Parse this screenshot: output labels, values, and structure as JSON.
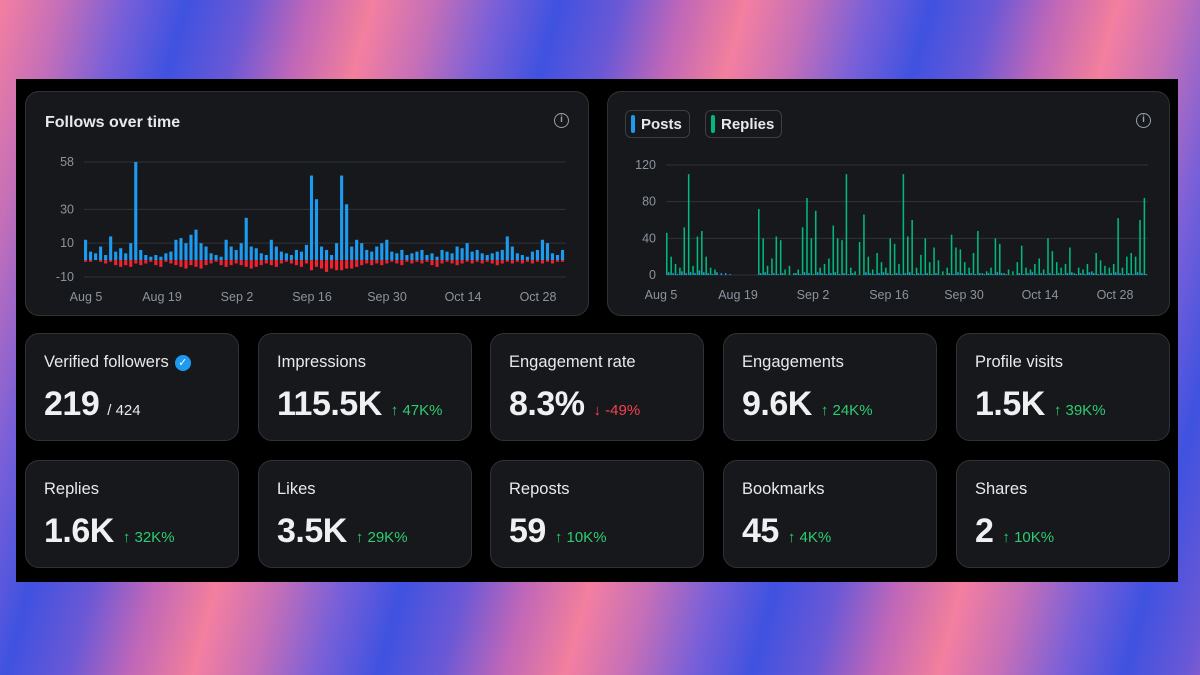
{
  "follows_chart": {
    "title": "Follows over time",
    "info_icon": "info-icon",
    "colors": {
      "gain": "#1d9bf0",
      "loss": "#f4212e",
      "grid": "#2f3336"
    },
    "chart_data": {
      "type": "bar",
      "title": "Follows over time",
      "y_ticks": [
        "58",
        "30",
        "10",
        "-10"
      ],
      "ylim": [
        -10,
        58
      ],
      "x_tick_labels": [
        "Aug 5",
        "Aug 19",
        "Sep 2",
        "Sep 16",
        "Sep 30",
        "Oct 14",
        "Oct 28"
      ],
      "series": [
        {
          "name": "Gained",
          "values": [
            12,
            5,
            4,
            8,
            3,
            14,
            5,
            7,
            4,
            10,
            58,
            6,
            3,
            2,
            3,
            2,
            4,
            5,
            12,
            13,
            10,
            15,
            18,
            10,
            8,
            4,
            3,
            2,
            12,
            8,
            6,
            10,
            25,
            8,
            7,
            4,
            3,
            12,
            8,
            5,
            4,
            3,
            6,
            5,
            9,
            50,
            36,
            8,
            6,
            3,
            10,
            50,
            33,
            8,
            12,
            10,
            6,
            5,
            8,
            10,
            12,
            5,
            4,
            6,
            3,
            4,
            5,
            6,
            3,
            4,
            2,
            6,
            5,
            4,
            8,
            7,
            10,
            5,
            6,
            4,
            3,
            4,
            5,
            6,
            14,
            8,
            4,
            3,
            2,
            5,
            6,
            12,
            10,
            4,
            3,
            6
          ]
        },
        {
          "name": "Lost",
          "values": [
            -1,
            -1,
            0,
            -1,
            -2,
            -1,
            -3,
            -4,
            -3,
            -4,
            -2,
            -3,
            -2,
            -1,
            -3,
            -4,
            -1,
            -2,
            -3,
            -4,
            -5,
            -3,
            -4,
            -5,
            -3,
            -2,
            -1,
            -3,
            -4,
            -3,
            -2,
            -3,
            -4,
            -5,
            -4,
            -3,
            -2,
            -3,
            -4,
            -2,
            -1,
            -2,
            -3,
            -4,
            -2,
            -6,
            -4,
            -5,
            -7,
            -5,
            -6,
            -6,
            -5,
            -5,
            -4,
            -3,
            -2,
            -3,
            -2,
            -3,
            -2,
            -1,
            -2,
            -3,
            -1,
            -2,
            -1,
            -2,
            -1,
            -3,
            -4,
            -2,
            -1,
            -2,
            -3,
            -2,
            -1,
            -2,
            -1,
            -2,
            -1,
            -2,
            -3,
            -2,
            -1,
            -2,
            -1,
            -2,
            -1,
            -2,
            -1,
            -2,
            -1,
            -2,
            -1,
            -1
          ]
        }
      ]
    }
  },
  "activity_chart": {
    "legend": [
      {
        "label": "Posts",
        "color": "#1d9bf0"
      },
      {
        "label": "Replies",
        "color": "#00ba7c"
      }
    ],
    "info_icon": "info-icon",
    "chart_data": {
      "type": "bar",
      "y_ticks": [
        "120",
        "80",
        "40",
        "0"
      ],
      "ylim": [
        0,
        120
      ],
      "x_tick_labels": [
        "Aug 5",
        "Aug 19",
        "Sep 2",
        "Sep 16",
        "Sep 30",
        "Oct 14",
        "Oct 28"
      ],
      "series": [
        {
          "name": "Posts",
          "values": [
            3,
            2,
            1,
            4,
            2,
            3,
            2,
            5,
            3,
            2,
            1,
            3,
            2,
            2,
            1,
            0,
            0,
            0,
            0,
            0,
            0,
            2,
            3,
            1,
            2,
            1,
            2,
            0,
            0,
            2,
            1,
            3,
            2,
            1,
            3,
            2,
            1,
            2,
            3,
            1,
            2,
            1,
            2,
            0,
            0,
            3,
            2,
            1,
            2,
            3,
            2,
            1,
            2,
            1,
            2,
            3,
            1,
            2,
            1,
            2,
            1,
            2,
            0,
            0,
            2,
            1,
            3,
            2,
            1,
            2,
            1,
            2,
            1,
            2,
            1,
            3,
            2,
            1,
            0,
            0,
            2,
            1,
            2,
            3,
            1,
            2,
            1,
            2,
            1,
            2,
            1,
            2,
            3,
            1,
            2,
            1,
            3,
            2,
            1,
            2,
            1,
            2,
            3,
            2,
            1,
            2,
            1,
            3,
            2,
            1
          ]
        },
        {
          "name": "Replies",
          "values": [
            46,
            20,
            12,
            8,
            52,
            110,
            10,
            42,
            48,
            20,
            8,
            6,
            0,
            0,
            0,
            0,
            0,
            0,
            0,
            0,
            0,
            72,
            40,
            10,
            18,
            42,
            38,
            6,
            10,
            2,
            6,
            52,
            84,
            40,
            70,
            8,
            12,
            18,
            54,
            40,
            38,
            110,
            8,
            4,
            36,
            66,
            20,
            6,
            24,
            14,
            8,
            40,
            34,
            12,
            110,
            42,
            60,
            8,
            22,
            40,
            14,
            30,
            16,
            4,
            8,
            44,
            30,
            28,
            14,
            8,
            24,
            48,
            2,
            4,
            8,
            40,
            34,
            2,
            6,
            4,
            14,
            32,
            8,
            6,
            12,
            18,
            6,
            40,
            26,
            14,
            8,
            12,
            30,
            2,
            8,
            6,
            12,
            4,
            24,
            16,
            10,
            8,
            12,
            62,
            8,
            20,
            24,
            20,
            60,
            84
          ]
        }
      ]
    }
  },
  "stats_row1": [
    {
      "label": "Verified followers",
      "value": "219",
      "sub": "/ 424",
      "delta": "",
      "direction": "none",
      "verified": true
    },
    {
      "label": "Impressions",
      "value": "115.5K",
      "sub": "",
      "delta": "47K%",
      "direction": "up"
    },
    {
      "label": "Engagement rate",
      "value": "8.3%",
      "sub": "",
      "delta": "-49%",
      "direction": "down"
    },
    {
      "label": "Engagements",
      "value": "9.6K",
      "sub": "",
      "delta": "24K%",
      "direction": "up"
    },
    {
      "label": "Profile visits",
      "value": "1.5K",
      "sub": "",
      "delta": "39K%",
      "direction": "up"
    }
  ],
  "stats_row2": [
    {
      "label": "Replies",
      "value": "1.6K",
      "delta": "32K%",
      "direction": "up"
    },
    {
      "label": "Likes",
      "value": "3.5K",
      "delta": "29K%",
      "direction": "up"
    },
    {
      "label": "Reposts",
      "value": "59",
      "delta": "10K%",
      "direction": "up"
    },
    {
      "label": "Bookmarks",
      "value": "45",
      "delta": "4K%",
      "direction": "up"
    },
    {
      "label": "Shares",
      "value": "2",
      "delta": "10K%",
      "direction": "up"
    }
  ],
  "arrows": {
    "up": "↑",
    "down": "↓"
  }
}
